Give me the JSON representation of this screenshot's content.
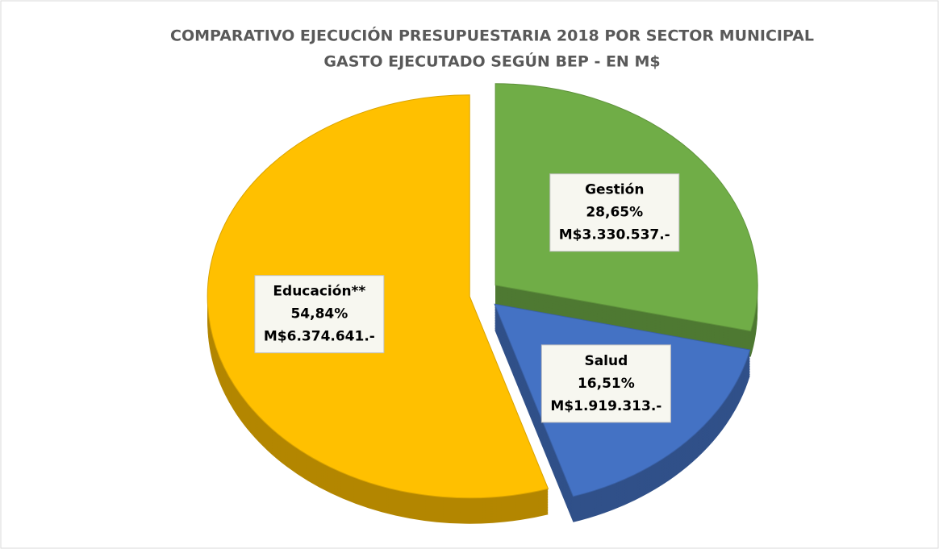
{
  "chart_data": {
    "type": "pie",
    "title": [
      "COMPARATIVO EJECUCIÓN PRESUPUESTARIA 2018 POR SECTOR MUNICIPAL",
      "GASTO EJECUTADO SEGÚN BEP - EN M$"
    ],
    "categories": [
      "Gestión",
      "Salud",
      "Educación**"
    ],
    "values": [
      28.65,
      16.51,
      54.84
    ],
    "value_labels": [
      "28,65%",
      "16,51%",
      "54,84%"
    ],
    "amounts": [
      {
        "value": 3330537,
        "label": "M$3.330.537.-"
      },
      {
        "value": 1919313,
        "label": "M$1.919.313.-"
      },
      {
        "value": 6374641,
        "label": "M$6.374.641.-"
      }
    ],
    "colors": [
      "#70ad47",
      "#4472c4",
      "#ffc000"
    ]
  }
}
